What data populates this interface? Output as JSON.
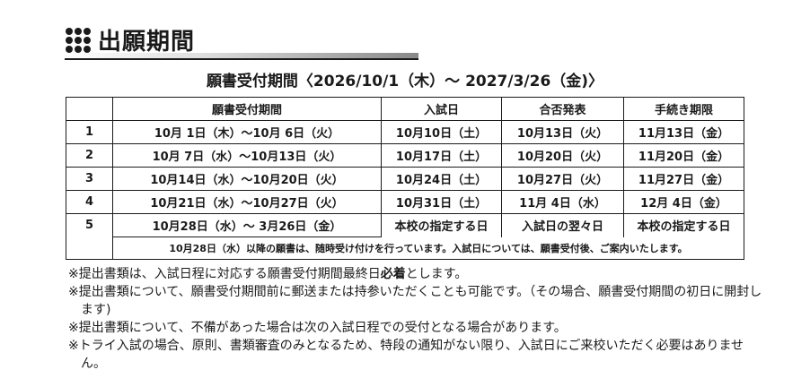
{
  "title": "出願期間",
  "subtitle": "願書受付期間〈2026/10/1（木）～ 2027/3/26（金)〉",
  "table": {
    "headers": [
      "",
      "願書受付期間",
      "入試日",
      "合否発表",
      "手続き期限"
    ],
    "rows": [
      [
        "1",
        "10月  1日（木）～10月  6日（火）",
        "10月10日（土）",
        "10月13日（火）",
        "11月13日（金）"
      ],
      [
        "2",
        "10月  7日（水）～10月13日（火）",
        "10月17日（土）",
        "10月20日（火）",
        "11月20日（金）"
      ],
      [
        "3",
        "10月14日（水）～10月20日（火）",
        "10月24日（土）",
        "10月27日（火）",
        "11月27日（金）"
      ],
      [
        "4",
        "10月21日（水）～10月27日（火）",
        "10月31日（土）",
        "11月  4日（水）",
        "12月  4日（金）"
      ],
      [
        "5",
        "10月28日（水）～  3月26日（金）",
        "本校の指定する日",
        "入試日の翌々日",
        "本校の指定する日"
      ]
    ],
    "note": "10月28日（水）以降の願書は、随時受け付けを行っています。入試日については、願書受付後、ご案内いたします。"
  },
  "notes": [
    {
      "pre": "※提出書類は、入試日程に対応する願書受付期間最終日",
      "bold": "必着",
      "post": "とします。"
    },
    {
      "pre": "※提出書類について、願書受付期間前に郵送または持参いただくことも可能です。（その場合、願書受付期間の初日に開封します)",
      "bold": "",
      "post": ""
    },
    {
      "pre": "※提出書類について、不備があった場合は次の入試日程での受付となる場合があります。",
      "bold": "",
      "post": ""
    },
    {
      "pre": "※トライ入試の場合、原則、書類審査のみとなるため、特段の通知がない限り、入試日にご来校いただく必要はありません。",
      "bold": "",
      "post": ""
    }
  ]
}
